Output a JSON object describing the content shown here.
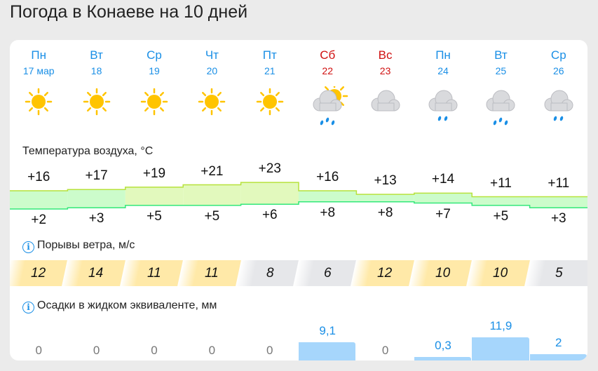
{
  "title": "Погода в Конаеве на 10 дней",
  "sections": {
    "temperature": "Температура воздуха, °C",
    "wind": "Порывы ветра, м/с",
    "precip": "Осадки в жидком эквиваленте, мм"
  },
  "colors": {
    "weekday": "#1a8fe6",
    "weekend": "#d01010",
    "gust_high": "#ffe9a8",
    "gust_low": "#e6e7ea",
    "precip": "#a6d6fc"
  },
  "days": [
    {
      "dow": "Пн",
      "date": "17 мар",
      "weekend": false,
      "icon": "sun",
      "high": "+16",
      "low": "+2",
      "gust": "12",
      "precip": "0"
    },
    {
      "dow": "Вт",
      "date": "18",
      "weekend": false,
      "icon": "sun",
      "high": "+17",
      "low": "+3",
      "gust": "14",
      "precip": "0"
    },
    {
      "dow": "Ср",
      "date": "19",
      "weekend": false,
      "icon": "sun",
      "high": "+19",
      "low": "+5",
      "gust": "11",
      "precip": "0"
    },
    {
      "dow": "Чт",
      "date": "20",
      "weekend": false,
      "icon": "sun",
      "high": "+21",
      "low": "+5",
      "gust": "11",
      "precip": "0"
    },
    {
      "dow": "Пт",
      "date": "21",
      "weekend": false,
      "icon": "sun",
      "high": "+23",
      "low": "+6",
      "gust": "8",
      "precip": "0"
    },
    {
      "dow": "Сб",
      "date": "22",
      "weekend": true,
      "icon": "sun-cloud-rain",
      "high": "+16",
      "low": "+8",
      "gust": "6",
      "precip": "9,1"
    },
    {
      "dow": "Вс",
      "date": "23",
      "weekend": true,
      "icon": "cloud",
      "high": "+13",
      "low": "+8",
      "gust": "12",
      "precip": "0"
    },
    {
      "dow": "Пн",
      "date": "24",
      "weekend": false,
      "icon": "cloud-rain",
      "high": "+14",
      "low": "+7",
      "gust": "10",
      "precip": "0,3"
    },
    {
      "dow": "Вт",
      "date": "25",
      "weekend": false,
      "icon": "cloud-heavy-rain",
      "high": "+11",
      "low": "+5",
      "gust": "10",
      "precip": "11,9"
    },
    {
      "dow": "Ср",
      "date": "26",
      "weekend": false,
      "icon": "cloud-rain",
      "high": "+11",
      "low": "+3",
      "gust": "5",
      "precip": "2"
    }
  ]
}
